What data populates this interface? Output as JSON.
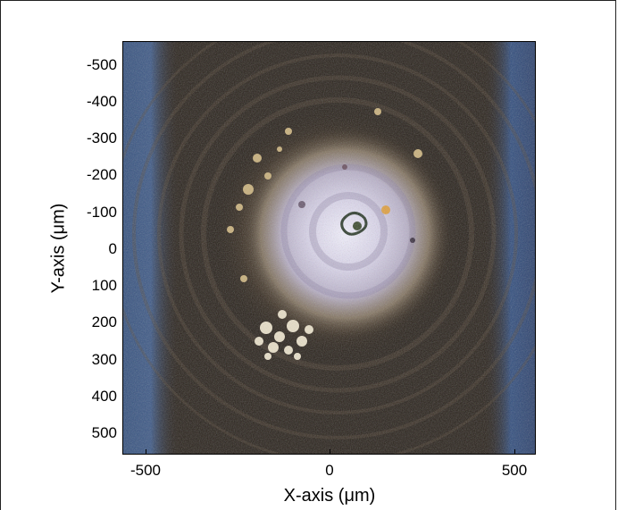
{
  "figure": {
    "xlabel": "X-axis (μm)",
    "ylabel": "Y-axis (μm)",
    "x_ticks": [
      "-500",
      "0",
      "500"
    ],
    "y_ticks": [
      "-500",
      "-400",
      "-300",
      "-200",
      "-100",
      "0",
      "100",
      "200",
      "300",
      "400",
      "500"
    ],
    "x_range": [
      -560,
      560
    ],
    "y_range": [
      -560,
      560
    ],
    "y_direction": "down",
    "image_description_colors": {
      "background": "#2a2320",
      "side_band": "#2f4d7a",
      "bright_core": "#e8e6f0",
      "warm_ring": "#b89a5c"
    }
  }
}
